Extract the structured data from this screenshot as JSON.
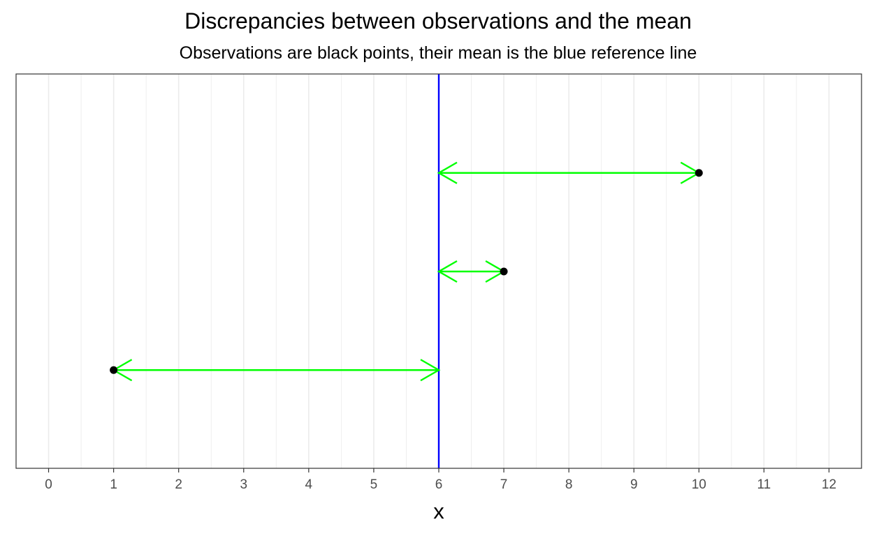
{
  "chart_data": {
    "type": "scatter",
    "title": "Discrepancies between observations and the mean",
    "subtitle": "Observations are black points, their mean is the blue reference line",
    "xlabel": "x",
    "ylabel": "",
    "xlim": [
      -0.5,
      12.5
    ],
    "x_ticks": [
      0,
      1,
      2,
      3,
      4,
      5,
      6,
      7,
      8,
      9,
      10,
      11,
      12
    ],
    "x_tick_labels": [
      "0",
      "1",
      "2",
      "3",
      "4",
      "5",
      "6",
      "7",
      "8",
      "9",
      "10",
      "11",
      "12"
    ],
    "y_ticks_shown": false,
    "grid": "vertical",
    "legend": "none",
    "mean": 6,
    "observations": [
      {
        "x": 1,
        "row": 1
      },
      {
        "x": 7,
        "row": 2
      },
      {
        "x": 10,
        "row": 3
      }
    ],
    "colors": {
      "points": "#000000",
      "mean_line": "#0000ff",
      "arrows": "#00ff00",
      "grid": "#ebebeb",
      "panel_border": "#333333"
    }
  }
}
